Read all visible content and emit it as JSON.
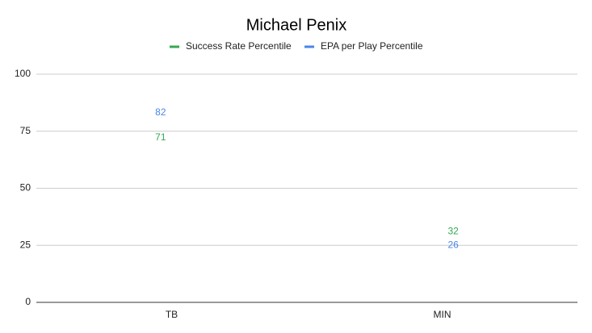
{
  "chart_data": {
    "type": "line",
    "title": "Michael Penix",
    "categories": [
      "TB",
      "MIN"
    ],
    "series": [
      {
        "name": "Success Rate Percentile",
        "color": "#34a853",
        "values": [
          71,
          32
        ]
      },
      {
        "name": "EPA per Play Percentile",
        "color": "#4a86e8",
        "values": [
          82,
          26
        ]
      }
    ],
    "ylim": [
      0,
      100
    ],
    "yticks": [
      0,
      25,
      50,
      75,
      100
    ],
    "grid": true,
    "legend": "top"
  }
}
